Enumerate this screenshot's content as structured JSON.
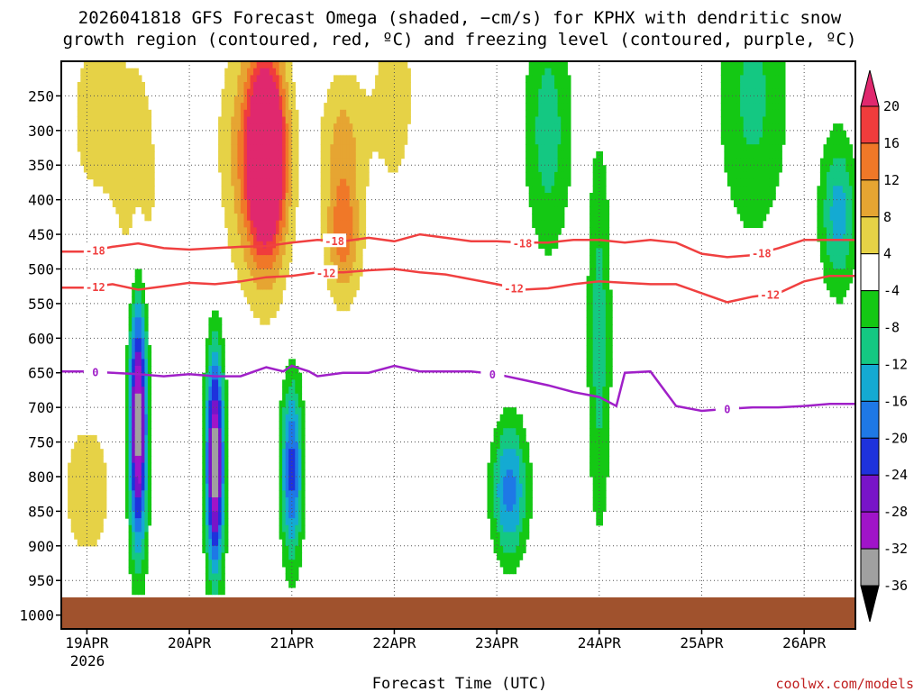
{
  "title": {
    "line1": "2026041818 GFS Forecast Omega (shaded, −cm/s) for KPHX with dendritic snow",
    "line2": "growth region (contoured, red, ºC) and freezing level (contoured, purple, ºC)"
  },
  "credit": "coolwx.com/models",
  "chart_data": {
    "type": "heatmap",
    "title": "2026041818 GFS Forecast Omega (shaded, −cm/s) for KPHX with dendritic snow growth region (contoured, red, ºC) and freezing level (contoured, purple, ºC)",
    "xlabel": "Forecast Time (UTC)",
    "ylabel": "",
    "x_ticks": [
      "19APR",
      "20APR",
      "21APR",
      "22APR",
      "23APR",
      "24APR",
      "25APR",
      "26APR"
    ],
    "x_year": "2026",
    "xlim_hours": [
      -6,
      180
    ],
    "y_ticks": [
      250,
      300,
      350,
      400,
      450,
      500,
      550,
      600,
      650,
      700,
      750,
      800,
      850,
      900,
      950,
      1000
    ],
    "ylim_hpa": [
      200,
      1020
    ],
    "colorbar": {
      "levels": [
        20,
        16,
        12,
        8,
        4,
        -4,
        -8,
        -12,
        -16,
        -20,
        -24,
        -28,
        -32,
        -36
      ],
      "colors": [
        "#e0286e",
        "#f03c3c",
        "#f07828",
        "#e6a532",
        "#e6d246",
        "#ffffff",
        "#14c814",
        "#14c882",
        "#14aad2",
        "#1e78e6",
        "#1e32dc",
        "#7814c8",
        "#a014c8",
        "#a0a0a0",
        "#000000"
      ]
    },
    "contours": {
      "dgz_minus18": {
        "label": "-18",
        "color": "#f04040",
        "label_hours": [
          2,
          58,
          102,
          158
        ],
        "points": [
          [
            -6,
            475
          ],
          [
            0,
            475
          ],
          [
            6,
            468
          ],
          [
            12,
            463
          ],
          [
            18,
            470
          ],
          [
            24,
            472
          ],
          [
            30,
            470
          ],
          [
            36,
            468
          ],
          [
            42,
            467
          ],
          [
            48,
            462
          ],
          [
            54,
            458
          ],
          [
            60,
            460
          ],
          [
            66,
            455
          ],
          [
            72,
            460
          ],
          [
            78,
            450
          ],
          [
            84,
            455
          ],
          [
            90,
            460
          ],
          [
            96,
            460
          ],
          [
            102,
            462
          ],
          [
            108,
            462
          ],
          [
            114,
            458
          ],
          [
            120,
            458
          ],
          [
            126,
            462
          ],
          [
            132,
            458
          ],
          [
            138,
            462
          ],
          [
            144,
            478
          ],
          [
            150,
            483
          ],
          [
            156,
            480
          ],
          [
            162,
            470
          ],
          [
            168,
            458
          ],
          [
            174,
            458
          ],
          [
            180,
            458
          ]
        ]
      },
      "dgz_minus12": {
        "label": "-12",
        "color": "#f04040",
        "label_hours": [
          2,
          56,
          100,
          160
        ],
        "points": [
          [
            -6,
            527
          ],
          [
            0,
            527
          ],
          [
            6,
            522
          ],
          [
            12,
            530
          ],
          [
            18,
            525
          ],
          [
            24,
            520
          ],
          [
            30,
            522
          ],
          [
            36,
            518
          ],
          [
            42,
            512
          ],
          [
            48,
            510
          ],
          [
            54,
            505
          ],
          [
            60,
            505
          ],
          [
            66,
            502
          ],
          [
            72,
            500
          ],
          [
            78,
            505
          ],
          [
            84,
            508
          ],
          [
            90,
            515
          ],
          [
            96,
            522
          ],
          [
            102,
            530
          ],
          [
            108,
            528
          ],
          [
            114,
            522
          ],
          [
            120,
            518
          ],
          [
            126,
            520
          ],
          [
            132,
            522
          ],
          [
            138,
            522
          ],
          [
            144,
            535
          ],
          [
            150,
            548
          ],
          [
            156,
            540
          ],
          [
            162,
            535
          ],
          [
            168,
            518
          ],
          [
            174,
            510
          ],
          [
            180,
            510
          ]
        ]
      },
      "freezing_level": {
        "label": "0",
        "color": "#a020c8",
        "label_hours": [
          2,
          95,
          150
        ],
        "points": [
          [
            -6,
            648
          ],
          [
            0,
            648
          ],
          [
            6,
            650
          ],
          [
            12,
            652
          ],
          [
            18,
            655
          ],
          [
            24,
            652
          ],
          [
            30,
            655
          ],
          [
            36,
            655
          ],
          [
            42,
            642
          ],
          [
            46,
            648
          ],
          [
            48,
            640
          ],
          [
            52,
            648
          ],
          [
            54,
            655
          ],
          [
            60,
            650
          ],
          [
            66,
            650
          ],
          [
            72,
            640
          ],
          [
            78,
            648
          ],
          [
            84,
            648
          ],
          [
            90,
            648
          ],
          [
            96,
            652
          ],
          [
            102,
            660
          ],
          [
            108,
            668
          ],
          [
            114,
            678
          ],
          [
            120,
            685
          ],
          [
            124,
            698
          ],
          [
            126,
            650
          ],
          [
            132,
            648
          ],
          [
            138,
            698
          ],
          [
            144,
            705
          ],
          [
            150,
            702
          ],
          [
            156,
            700
          ],
          [
            162,
            700
          ],
          [
            168,
            698
          ],
          [
            174,
            695
          ],
          [
            180,
            695
          ]
        ]
      }
    },
    "omega_blobs": [
      {
        "hour": 42,
        "p": 350,
        "rh": 4,
        "rp": 120,
        "value": 20
      },
      {
        "hour": 42,
        "p": 330,
        "rh": 2.5,
        "rp": 80,
        "value": 24
      },
      {
        "hour": 60,
        "p": 450,
        "rh": 3,
        "rp": 70,
        "value": 14
      },
      {
        "hour": 60,
        "p": 300,
        "rh": 4,
        "rp": 70,
        "value": 8
      },
      {
        "hour": 0,
        "p": 820,
        "rh": 4,
        "rp": 70,
        "value": 8
      },
      {
        "hour": 12,
        "p": 720,
        "rh": 1.5,
        "rp": 130,
        "value": -36
      },
      {
        "hour": 30,
        "p": 780,
        "rh": 1.5,
        "rp": 110,
        "value": -36
      },
      {
        "hour": 48,
        "p": 790,
        "rh": 1.8,
        "rp": 90,
        "value": -22
      },
      {
        "hour": 99,
        "p": 820,
        "rh": 3,
        "rp": 70,
        "value": -18
      },
      {
        "hour": 120,
        "p": 600,
        "rh": 2,
        "rp": 200,
        "value": -10
      },
      {
        "hour": 108,
        "p": 300,
        "rh": 4,
        "rp": 130,
        "value": -10
      },
      {
        "hour": 12,
        "p": 380,
        "rh": 4,
        "rp": 150,
        "value": 6
      },
      {
        "hour": 2,
        "p": 280,
        "rh": 5,
        "rp": 100,
        "value": 6
      },
      {
        "hour": 72,
        "p": 250,
        "rh": 4,
        "rp": 120,
        "value": 6
      },
      {
        "hour": 36,
        "p": 320,
        "rh": 5,
        "rp": 130,
        "value": 6
      },
      {
        "hour": 156,
        "p": 250,
        "rh": 6,
        "rp": 150,
        "value": -9
      },
      {
        "hour": 176,
        "p": 420,
        "rh": 3,
        "rp": 80,
        "value": -14
      }
    ]
  }
}
